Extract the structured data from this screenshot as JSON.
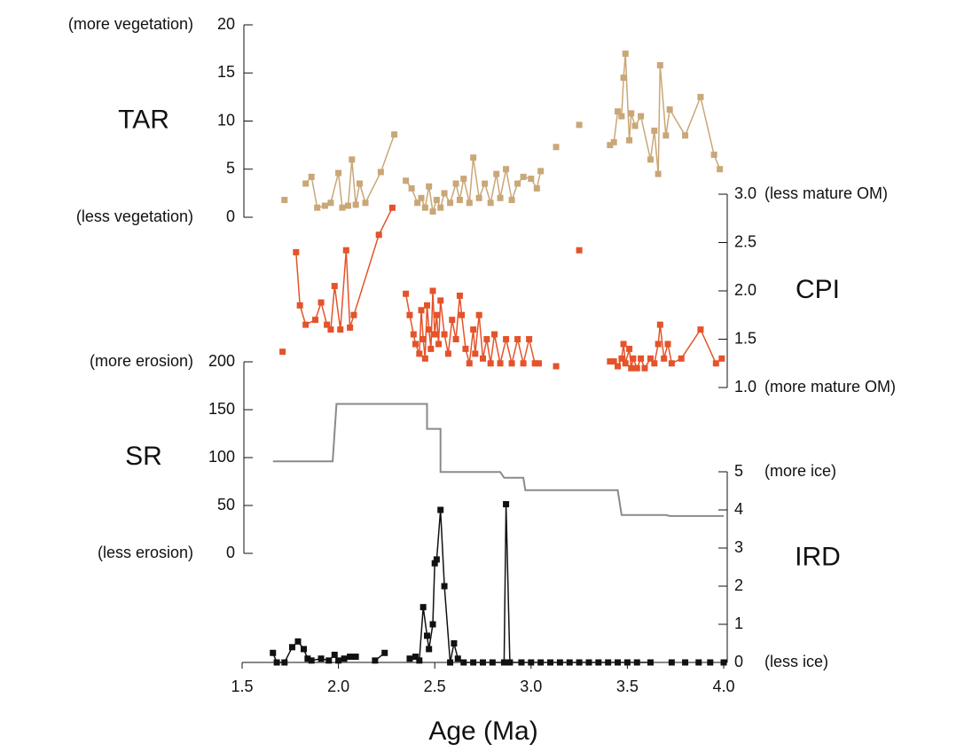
{
  "shared_x": {
    "label": "Age (Ma)",
    "xlim": [
      1.5,
      4.0
    ],
    "xticks": [
      1.5,
      {
        "value": 2.0,
        "label": "2.0"
      },
      2.5,
      {
        "value": 3.0,
        "label": "3.0"
      },
      3.5,
      {
        "value": 4.0,
        "label": "4.0"
      }
    ]
  },
  "chart_data": [
    {
      "type": "line",
      "label": "TAR",
      "top_note": "(more vegetation)",
      "bottom_note": "(less vegetation)",
      "axis_side": "left",
      "marker": "square",
      "color": "#c9a777",
      "ylim": [
        0,
        20
      ],
      "yticks": [
        0,
        5,
        10,
        15,
        20
      ],
      "x": [
        1.72,
        null,
        1.83,
        1.86,
        1.89,
        1.93,
        1.96,
        2.0,
        2.02,
        2.05,
        2.07,
        2.09,
        2.11,
        2.14,
        2.22,
        2.29,
        null,
        2.35,
        2.38,
        2.41,
        2.43,
        2.45,
        2.47,
        2.49,
        2.51,
        2.53,
        2.55,
        2.58,
        2.61,
        2.63,
        2.65,
        2.68,
        2.7,
        2.73,
        2.76,
        2.79,
        2.82,
        2.84,
        2.87,
        2.9,
        2.93,
        2.96,
        3.0,
        3.03,
        3.05,
        null,
        3.13,
        null,
        3.25,
        null,
        3.41,
        3.43,
        3.45,
        3.47,
        3.48,
        3.49,
        3.51,
        3.52,
        3.54,
        3.57,
        3.62,
        3.64,
        3.66,
        3.67,
        3.7,
        3.72,
        3.8,
        3.88,
        3.95,
        3.98
      ],
      "values": [
        1.8,
        null,
        3.5,
        4.2,
        1.0,
        1.2,
        1.5,
        4.6,
        1.0,
        1.2,
        6.0,
        1.3,
        3.5,
        1.5,
        4.7,
        8.6,
        null,
        3.8,
        3.0,
        1.5,
        2.0,
        1.0,
        3.2,
        0.6,
        1.8,
        1.0,
        2.5,
        1.5,
        3.5,
        1.8,
        4.0,
        1.5,
        6.2,
        2.0,
        3.5,
        1.5,
        4.5,
        2.0,
        5.0,
        1.8,
        3.5,
        4.2,
        4.0,
        3.0,
        4.8,
        null,
        7.3,
        null,
        9.6,
        null,
        7.5,
        7.8,
        11.0,
        10.5,
        14.5,
        17.0,
        8.0,
        10.8,
        9.5,
        10.5,
        6.0,
        9.0,
        4.5,
        15.8,
        8.5,
        11.2,
        8.5,
        12.5,
        6.5,
        5.0
      ]
    },
    {
      "type": "line",
      "label": "CPI",
      "top_note": "(less mature OM)",
      "bottom_note": "(more mature OM)",
      "axis_side": "right",
      "marker": "square",
      "color": "#e4532a",
      "ylim": [
        1.0,
        3.0
      ],
      "yticks": [
        {
          "value": 1.0,
          "label": "1.0"
        },
        1.5,
        {
          "value": 2.0,
          "label": "2.0"
        },
        2.5,
        {
          "value": 3.0,
          "label": "3.0"
        }
      ],
      "x": [
        1.71,
        null,
        1.78,
        1.8,
        1.83,
        1.88,
        1.91,
        1.94,
        1.96,
        1.98,
        2.01,
        2.04,
        2.06,
        2.08,
        2.21,
        2.28,
        null,
        2.35,
        2.37,
        2.39,
        2.4,
        2.42,
        2.43,
        2.44,
        2.45,
        2.46,
        2.47,
        2.48,
        2.49,
        2.5,
        2.51,
        2.52,
        2.53,
        2.55,
        2.57,
        2.59,
        2.61,
        2.63,
        2.64,
        2.66,
        2.68,
        2.7,
        2.71,
        2.73,
        2.75,
        2.77,
        2.79,
        2.81,
        2.84,
        2.87,
        2.9,
        2.93,
        2.96,
        2.99,
        3.02,
        3.04,
        null,
        3.13,
        null,
        3.25,
        null,
        3.41,
        3.43,
        3.45,
        3.47,
        3.48,
        3.49,
        3.51,
        3.52,
        3.53,
        3.55,
        3.57,
        3.59,
        3.62,
        3.64,
        3.66,
        3.67,
        3.69,
        3.71,
        3.73,
        3.78,
        3.88,
        3.96,
        3.99
      ],
      "values": [
        1.37,
        null,
        2.4,
        1.85,
        1.65,
        1.7,
        1.88,
        1.65,
        1.6,
        2.05,
        1.6,
        2.42,
        1.62,
        1.75,
        2.58,
        2.86,
        null,
        1.97,
        1.75,
        1.55,
        1.45,
        1.35,
        1.8,
        1.5,
        1.3,
        1.85,
        1.6,
        1.4,
        2.0,
        1.55,
        1.75,
        1.45,
        1.9,
        1.55,
        1.35,
        1.7,
        1.5,
        1.95,
        1.75,
        1.4,
        1.25,
        1.6,
        1.35,
        1.75,
        1.3,
        1.5,
        1.25,
        1.55,
        1.25,
        1.5,
        1.25,
        1.5,
        1.25,
        1.5,
        1.25,
        1.25,
        null,
        1.22,
        null,
        2.42,
        null,
        1.27,
        1.27,
        1.22,
        1.3,
        1.45,
        1.25,
        1.4,
        1.2,
        1.3,
        1.2,
        1.3,
        1.2,
        1.3,
        1.25,
        1.45,
        1.65,
        1.3,
        1.45,
        1.25,
        1.3,
        1.6,
        1.25,
        1.3
      ]
    },
    {
      "type": "line",
      "label": "SR",
      "top_note": "(more erosion)",
      "bottom_note": "(less erosion)",
      "axis_side": "left",
      "marker": "none",
      "color": "#8a8a8a",
      "ylim": [
        0,
        200
      ],
      "yticks": [
        0,
        50,
        100,
        150,
        200
      ],
      "x": [
        1.66,
        1.97,
        1.99,
        2.46,
        2.46,
        2.53,
        2.53,
        2.84,
        2.86,
        2.96,
        2.97,
        3.45,
        3.47,
        3.7,
        3.72,
        4.0
      ],
      "values": [
        96,
        96,
        156,
        156,
        130,
        130,
        85,
        85,
        79,
        79,
        66,
        66,
        40,
        40,
        39,
        39
      ]
    },
    {
      "type": "line",
      "label": "IRD",
      "top_note": "(more ice)",
      "bottom_note": "(less ice)",
      "axis_side": "right",
      "marker": "square",
      "color": "#111111",
      "ylim": [
        0,
        5
      ],
      "yticks": [
        0,
        1,
        2,
        3,
        4,
        5
      ],
      "x": [
        1.66,
        1.68,
        1.72,
        1.76,
        1.79,
        1.82,
        1.84,
        1.86,
        1.91,
        1.95,
        1.98,
        2.0,
        2.03,
        2.06,
        2.09,
        null,
        2.19,
        2.24,
        null,
        2.37,
        2.4,
        2.42,
        2.44,
        2.46,
        2.47,
        2.49,
        2.5,
        2.51,
        2.53,
        2.55,
        2.58,
        2.6,
        2.62,
        2.65,
        2.7,
        2.75,
        2.8,
        2.86,
        2.87,
        2.89,
        2.95,
        3.0,
        3.05,
        3.1,
        3.15,
        3.2,
        3.25,
        3.3,
        3.35,
        3.4,
        3.45,
        3.5,
        3.55,
        3.62,
        null,
        3.73,
        null,
        3.8,
        null,
        3.87,
        null,
        3.93,
        null,
        4.0
      ],
      "values": [
        0.25,
        0,
        0,
        0.4,
        0.55,
        0.35,
        0.1,
        0.05,
        0.1,
        0.05,
        0.2,
        0.05,
        0.1,
        0.15,
        0.15,
        null,
        0.05,
        0.25,
        null,
        0.1,
        0.15,
        0.05,
        1.45,
        0.7,
        0.35,
        1.0,
        2.6,
        2.7,
        4.0,
        2.0,
        0,
        0.5,
        0.1,
        0,
        0,
        0,
        0,
        0,
        4.15,
        0,
        0,
        0,
        0,
        0,
        0,
        0,
        0,
        0,
        0,
        0,
        0,
        0,
        0,
        0,
        null,
        0,
        null,
        0,
        null,
        0,
        null,
        0,
        null,
        0
      ]
    }
  ]
}
